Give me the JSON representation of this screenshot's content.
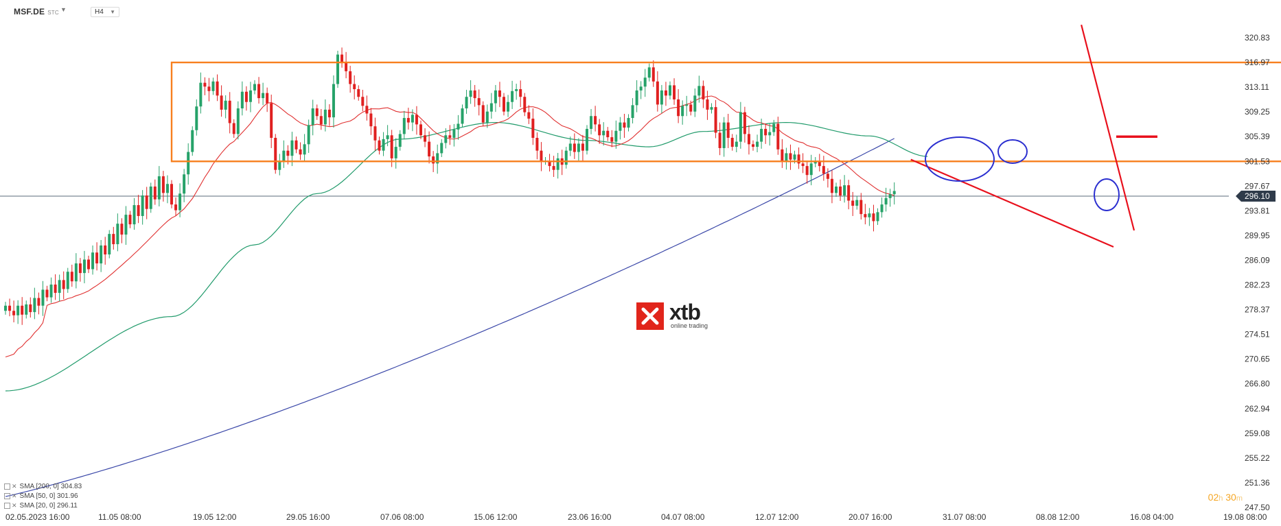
{
  "header": {
    "symbol": "MSF.DE",
    "symbol_tag": "STC",
    "timeframe": "H4"
  },
  "indicators": [
    {
      "label": "SMA [200, 0] 304.83",
      "color": "#3a47a8"
    },
    {
      "label": "SMA [50, 0] 301.96",
      "color": "#1f9a6a"
    },
    {
      "label": "SMA [20, 0] 296.11",
      "color": "#e03030"
    }
  ],
  "timer": {
    "h": "02",
    "h_unit": "h",
    "m": "30",
    "m_unit": "m"
  },
  "logo": {
    "name": "xtb",
    "tagline": "online trading"
  },
  "chart_data": {
    "type": "candlestick",
    "symbol": "MSF.DE",
    "timeframe": "H4",
    "current_price": 296.1,
    "current_price_label": "296.10",
    "y_axis_ticks": [
      "320.83",
      "316.97",
      "313.11",
      "309.25",
      "305.39",
      "301.53",
      "297.67",
      "293.81",
      "289.95",
      "286.09",
      "282.23",
      "278.37",
      "274.51",
      "270.65",
      "266.80",
      "262.94",
      "259.08",
      "255.22",
      "251.36",
      "247.50"
    ],
    "ylim": [
      247.5,
      320.83
    ],
    "x_axis_ticks": [
      "02.05.2023   16:00",
      "11.05   08:00",
      "19.05   12:00",
      "29.05   16:00",
      "07.06   08:00",
      "15.06   12:00",
      "23.06   16:00",
      "04.07   08:00",
      "12.07   12:00",
      "20.07   16:00",
      "31.07   08:00",
      "08.08   12:00",
      "16.08   04:00",
      "19.08   08:00"
    ],
    "colors": {
      "bull": "#26a269",
      "bear": "#e02020",
      "sma200": "#3a47a8",
      "sma50": "#1f9a6a",
      "sma20": "#e03030",
      "range_box": "#f77f1e",
      "trendline": "#e8101c",
      "circles": "#2b2fd0"
    },
    "close_series": [
      279.0,
      278.2,
      277.5,
      279.0,
      277.6,
      279.2,
      278.0,
      280.2,
      279.0,
      281.5,
      280.3,
      282.3,
      281.0,
      283.0,
      281.6,
      284.3,
      282.8,
      285.6,
      284.1,
      286.2,
      284.7,
      287.3,
      285.6,
      288.4,
      287.0,
      290.2,
      288.6,
      291.8,
      290.1,
      293.2,
      291.7,
      294.7,
      293.0,
      296.2,
      294.1,
      297.6,
      295.6,
      299.2,
      296.6,
      298.0,
      294.8,
      293.9,
      296.5,
      299.5,
      303.0,
      306.4,
      310.1,
      313.8,
      313.2,
      312.5,
      314.0,
      311.8,
      309.6,
      311.0,
      307.5,
      305.8,
      309.8,
      312.4,
      310.8,
      312.6,
      313.6,
      311.4,
      312.2,
      310.6,
      305.2,
      300.2,
      301.6,
      303.2,
      302.4,
      304.8,
      303.4,
      302.6,
      304.2,
      307.2,
      309.8,
      308.6,
      307.3,
      309.6,
      308.4,
      313.6,
      318.2,
      317.0,
      315.6,
      313.6,
      312.8,
      311.6,
      310.2,
      309.0,
      307.0,
      304.8,
      303.2,
      305.0,
      305.6,
      302.0,
      303.8,
      305.8,
      308.3,
      307.6,
      308.8,
      307.3,
      305.6,
      304.6,
      302.3,
      301.2,
      302.8,
      304.4,
      305.6,
      305.2,
      306.5,
      307.4,
      309.8,
      311.6,
      312.6,
      311.4,
      310.3,
      307.6,
      309.3,
      310.6,
      312.6,
      311.6,
      309.3,
      310.8,
      312.5,
      312.8,
      311.6,
      309.2,
      308.2,
      305.2,
      303.2,
      301.6,
      301.6,
      300.8,
      300.2,
      302.0,
      301.0,
      303.2,
      304.3,
      303.0,
      304.3,
      303.2,
      306.6,
      308.6,
      307.3,
      305.6,
      306.3,
      305.3,
      304.6,
      306.3,
      307.6,
      306.8,
      308.3,
      310.3,
      312.6,
      313.2,
      314.6,
      316.2,
      314.0,
      310.4,
      312.6,
      311.8,
      313.4,
      311.2,
      308.6,
      310.2,
      310.4,
      309.3,
      311.8,
      313.3,
      311.2,
      309.6,
      310.0,
      306.0,
      303.6,
      307.6,
      305.2,
      303.8,
      304.6,
      309.2,
      305.8,
      304.2,
      303.8,
      304.6,
      306.6,
      305.6,
      306.1,
      307.4,
      303.4,
      301.6,
      302.8,
      301.8,
      302.6,
      301.2,
      300.8,
      299.4,
      301.2,
      301.6,
      300.8,
      299.6,
      298.8,
      296.6,
      297.6,
      296.2,
      297.8,
      295.4,
      294.6,
      295.5,
      293.3,
      292.8,
      293.4,
      292.2,
      293.6,
      294.8,
      295.8,
      296.4,
      296.9
    ],
    "sma200": {
      "start": 249.2,
      "end": 305.1
    },
    "sma50_points": [
      [
        0,
        265.7
      ],
      [
        40,
        277.3
      ],
      [
        60,
        288.5
      ],
      [
        75,
        296.5
      ],
      [
        95,
        305.0
      ],
      [
        118,
        307.6
      ],
      [
        140,
        304.8
      ],
      [
        155,
        303.8
      ],
      [
        168,
        306.2
      ],
      [
        188,
        307.6
      ],
      [
        208,
        305.5
      ],
      [
        222,
        302.3
      ]
    ],
    "sma20_label": "SMA 20",
    "range_box": {
      "x_from": 40,
      "x_to": 312,
      "y_low": 301.53,
      "y_high": 316.97
    },
    "descending_channel": {
      "upper": [
        [
          263,
          322.2
        ],
        [
          222,
          295.4
        ]
      ],
      "lower": [
        [
          256,
          301.6
        ],
        [
          221,
          289.2
        ]
      ]
    },
    "resistance_mark": {
      "y": 305.39,
      "x_from": 230,
      "x_to": 245
    },
    "xlabel": "",
    "ylabel": ""
  }
}
